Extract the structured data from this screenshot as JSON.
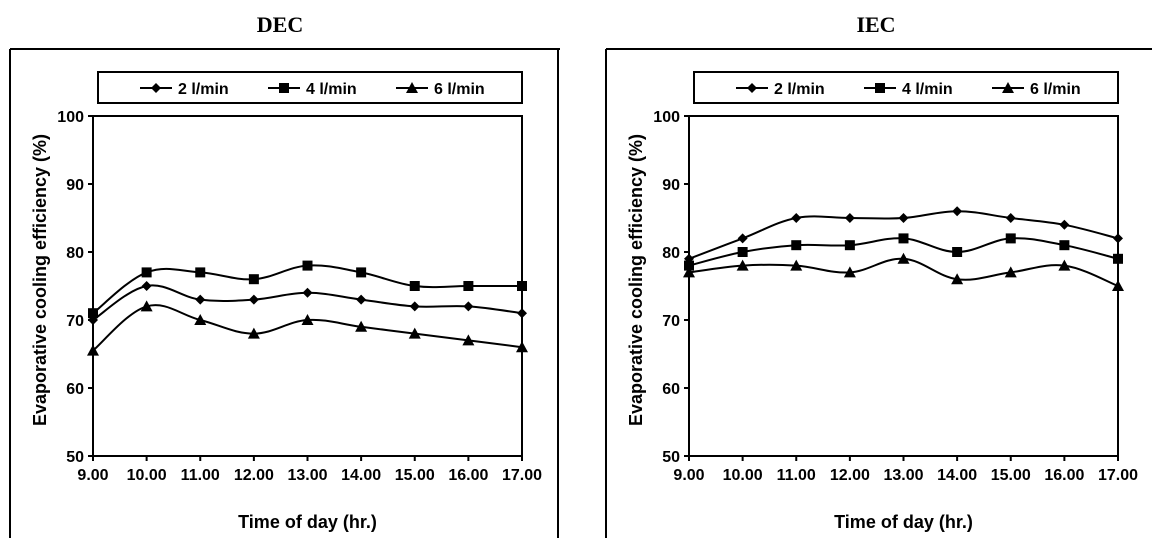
{
  "chart_data": [
    {
      "type": "line",
      "title": "DEC",
      "xlabel": "Time of day (hr.)",
      "ylabel": "Evaporative cooling efficiency (%)",
      "categories": [
        "9.00",
        "10.00",
        "11.00",
        "12.00",
        "13.00",
        "14.00",
        "15.00",
        "16.00",
        "17.00"
      ],
      "ylim": [
        50,
        100
      ],
      "yticks": [
        "50",
        "60",
        "70",
        "80",
        "90",
        "100"
      ],
      "legend_position": "top",
      "grid": false,
      "series": [
        {
          "name": "2 l/min",
          "marker": "diamond",
          "values": [
            70,
            75,
            73,
            73,
            74,
            73,
            72,
            72,
            71
          ]
        },
        {
          "name": "4 l/min",
          "marker": "square",
          "values": [
            71,
            77,
            77,
            76,
            78,
            77,
            75,
            75,
            75
          ]
        },
        {
          "name": "6 l/min",
          "marker": "triangle",
          "values": [
            65.5,
            72,
            70,
            68,
            70,
            69,
            68,
            67,
            66
          ]
        }
      ]
    },
    {
      "type": "line",
      "title": "IEC",
      "xlabel": "Time of day (hr.)",
      "ylabel": "Evaporative cooling efficiency (%)",
      "categories": [
        "9.00",
        "10.00",
        "11.00",
        "12.00",
        "13.00",
        "14.00",
        "15.00",
        "16.00",
        "17.00"
      ],
      "ylim": [
        50,
        100
      ],
      "yticks": [
        "50",
        "60",
        "70",
        "80",
        "90",
        "100"
      ],
      "legend_position": "top",
      "grid": false,
      "series": [
        {
          "name": "2 l/min",
          "marker": "diamond",
          "values": [
            79,
            82,
            85,
            85,
            85,
            86,
            85,
            84,
            82
          ]
        },
        {
          "name": "4 l/min",
          "marker": "square",
          "values": [
            78,
            80,
            81,
            81,
            82,
            80,
            82,
            81,
            79
          ]
        },
        {
          "name": "6 l/min",
          "marker": "triangle",
          "values": [
            77,
            78,
            78,
            77,
            79,
            76,
            77,
            78,
            75
          ]
        }
      ]
    }
  ]
}
